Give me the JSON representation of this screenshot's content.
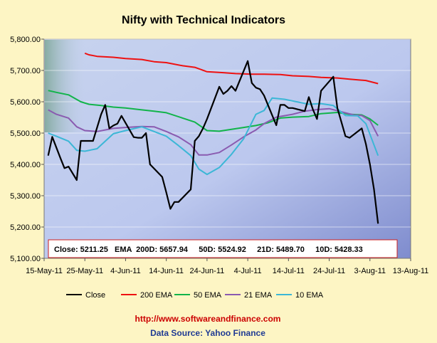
{
  "colors": {
    "close": "#000000",
    "ema200": "#ee1111",
    "ema50": "#11b44a",
    "ema21": "#8a5bb0",
    "ema10": "#3cb7d6",
    "background": "#fdf5c4",
    "url": "#cc0000",
    "source": "#1f3a93"
  },
  "footer": {
    "url": "http://www.softwareandfinance.com",
    "source": "Data Source: Yahoo Finance"
  },
  "summary": {
    "text": "Close: 5211.25   EMA  200D: 5657.94     50D: 5524.92     21D: 5489.70     10D: 5428.33"
  },
  "chart_data": {
    "type": "line",
    "title": "Nifty with Technical Indicators",
    "xlabel": "",
    "ylabel": "",
    "ylim": [
      5100,
      5800
    ],
    "yticks": [
      5100,
      5200,
      5300,
      5400,
      5500,
      5600,
      5700,
      5800
    ],
    "ytick_labels": [
      "5,100.00",
      "5,200.00",
      "5,300.00",
      "5,400.00",
      "5,500.00",
      "5,600.00",
      "5,700.00",
      "5,800.00"
    ],
    "xlim": [
      "2011-05-15",
      "2011-08-13"
    ],
    "xticks": [
      "2011-05-15",
      "2011-05-25",
      "2011-06-04",
      "2011-06-14",
      "2011-06-24",
      "2011-07-04",
      "2011-07-14",
      "2011-07-24",
      "2011-08-03",
      "2011-08-13"
    ],
    "xtick_labels": [
      "15-May-11",
      "25-May-11",
      "4-Jun-11",
      "14-Jun-11",
      "24-Jun-11",
      "4-Jul-11",
      "14-Jul-11",
      "24-Jul-11",
      "3-Aug-11",
      "13-Aug-11"
    ],
    "grid": true,
    "legend": "bottom",
    "series": [
      {
        "name": "Close",
        "x": [
          "2011-05-16",
          "2011-05-17",
          "2011-05-19",
          "2011-05-20",
          "2011-05-21",
          "2011-05-23",
          "2011-05-24",
          "2011-05-25",
          "2011-05-26",
          "2011-05-27",
          "2011-05-29",
          "2011-05-30",
          "2011-05-31",
          "2011-06-01",
          "2011-06-02",
          "2011-06-03",
          "2011-06-06",
          "2011-06-07",
          "2011-06-08",
          "2011-06-09",
          "2011-06-10",
          "2011-06-13",
          "2011-06-14",
          "2011-06-15",
          "2011-06-16",
          "2011-06-17",
          "2011-06-20",
          "2011-06-21",
          "2011-06-22",
          "2011-06-23",
          "2011-06-24",
          "2011-06-27",
          "2011-06-28",
          "2011-06-29",
          "2011-06-30",
          "2011-07-01",
          "2011-07-04",
          "2011-07-05",
          "2011-07-06",
          "2011-07-07",
          "2011-07-08",
          "2011-07-11",
          "2011-07-12",
          "2011-07-13",
          "2011-07-14",
          "2011-07-15",
          "2011-07-18",
          "2011-07-19",
          "2011-07-20",
          "2011-07-21",
          "2011-07-22",
          "2011-07-25",
          "2011-07-26",
          "2011-07-27",
          "2011-07-28",
          "2011-07-29",
          "2011-08-01",
          "2011-08-02",
          "2011-08-03",
          "2011-08-04",
          "2011-08-05"
        ],
        "values": [
          5428,
          5488,
          5420,
          5388,
          5393,
          5350,
          5475,
          5475,
          5475,
          5475,
          5560,
          5590,
          5515,
          5524,
          5530,
          5555,
          5487,
          5485,
          5485,
          5500,
          5400,
          5360,
          5310,
          5258,
          5280,
          5280,
          5320,
          5475,
          5490,
          5515,
          5545,
          5648,
          5625,
          5635,
          5650,
          5635,
          5730,
          5660,
          5645,
          5640,
          5620,
          5525,
          5590,
          5590,
          5580,
          5580,
          5570,
          5615,
          5575,
          5545,
          5635,
          5680,
          5580,
          5535,
          5490,
          5485,
          5515,
          5465,
          5400,
          5320,
          5211
        ]
      },
      {
        "name": "200 EMA",
        "x": [
          "2011-05-25",
          "2011-05-26",
          "2011-05-28",
          "2011-06-01",
          "2011-06-04",
          "2011-06-08",
          "2011-06-11",
          "2011-06-14",
          "2011-06-18",
          "2011-06-21",
          "2011-06-24",
          "2011-06-28",
          "2011-07-01",
          "2011-07-05",
          "2011-07-08",
          "2011-07-12",
          "2011-07-15",
          "2011-07-19",
          "2011-07-22",
          "2011-07-26",
          "2011-07-29",
          "2011-08-02",
          "2011-08-05"
        ],
        "values": [
          5755,
          5750,
          5745,
          5742,
          5738,
          5735,
          5728,
          5725,
          5715,
          5710,
          5696,
          5693,
          5690,
          5688,
          5688,
          5687,
          5683,
          5681,
          5678,
          5676,
          5672,
          5668,
          5658
        ]
      },
      {
        "name": "50 EMA",
        "x": [
          "2011-05-16",
          "2011-05-18",
          "2011-05-21",
          "2011-05-24",
          "2011-05-26",
          "2011-05-29",
          "2011-06-01",
          "2011-06-04",
          "2011-06-08",
          "2011-06-11",
          "2011-06-14",
          "2011-06-18",
          "2011-06-21",
          "2011-06-24",
          "2011-06-27",
          "2011-06-30",
          "2011-07-03",
          "2011-07-06",
          "2011-07-09",
          "2011-07-12",
          "2011-07-15",
          "2011-07-19",
          "2011-07-22",
          "2011-07-26",
          "2011-07-29",
          "2011-08-01",
          "2011-08-03",
          "2011-08-05"
        ],
        "values": [
          5636,
          5630,
          5622,
          5600,
          5592,
          5588,
          5583,
          5580,
          5574,
          5570,
          5565,
          5548,
          5535,
          5508,
          5506,
          5512,
          5518,
          5524,
          5533,
          5548,
          5551,
          5553,
          5562,
          5566,
          5560,
          5558,
          5545,
          5525
        ]
      },
      {
        "name": "21 EMA",
        "x": [
          "2011-05-16",
          "2011-05-18",
          "2011-05-21",
          "2011-05-23",
          "2011-05-25",
          "2011-05-28",
          "2011-06-01",
          "2011-06-04",
          "2011-06-08",
          "2011-06-11",
          "2011-06-14",
          "2011-06-17",
          "2011-06-20",
          "2011-06-22",
          "2011-06-24",
          "2011-06-27",
          "2011-06-30",
          "2011-07-03",
          "2011-07-06",
          "2011-07-08",
          "2011-07-11",
          "2011-07-15",
          "2011-07-18",
          "2011-07-21",
          "2011-07-24",
          "2011-07-27",
          "2011-07-30",
          "2011-08-01",
          "2011-08-03",
          "2011-08-05"
        ],
        "values": [
          5574,
          5560,
          5548,
          5520,
          5508,
          5505,
          5515,
          5518,
          5521,
          5520,
          5505,
          5488,
          5463,
          5430,
          5430,
          5438,
          5462,
          5488,
          5510,
          5530,
          5551,
          5560,
          5570,
          5575,
          5578,
          5568,
          5558,
          5556,
          5540,
          5490
        ]
      },
      {
        "name": "10 EMA",
        "x": [
          "2011-05-16",
          "2011-05-18",
          "2011-05-21",
          "2011-05-23",
          "2011-05-25",
          "2011-05-28",
          "2011-06-01",
          "2011-06-04",
          "2011-06-08",
          "2011-06-11",
          "2011-06-14",
          "2011-06-17",
          "2011-06-20",
          "2011-06-22",
          "2011-06-24",
          "2011-06-27",
          "2011-06-30",
          "2011-07-03",
          "2011-07-06",
          "2011-07-08",
          "2011-07-10",
          "2011-07-13",
          "2011-07-16",
          "2011-07-19",
          "2011-07-22",
          "2011-07-25",
          "2011-07-28",
          "2011-07-31",
          "2011-08-02",
          "2011-08-05"
        ],
        "values": [
          5500,
          5490,
          5474,
          5445,
          5442,
          5450,
          5498,
          5508,
          5520,
          5505,
          5490,
          5460,
          5428,
          5385,
          5368,
          5390,
          5432,
          5482,
          5560,
          5572,
          5612,
          5608,
          5600,
          5592,
          5594,
          5588,
          5556,
          5555,
          5530,
          5428
        ]
      }
    ]
  }
}
